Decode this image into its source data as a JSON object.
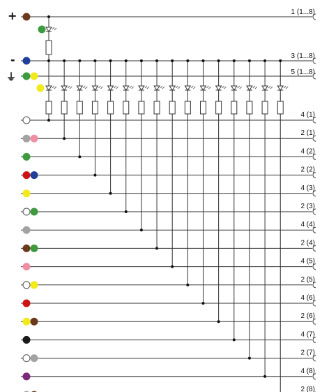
{
  "diagram": {
    "supply": {
      "plus_symbol": "+",
      "minus_symbol": "-",
      "ground_symbol": "⏚"
    },
    "bus_labels": {
      "positive": "1 (1...8)",
      "negative": "3 (1...8)",
      "ground": "5 (1...8)"
    },
    "wire_colors": {
      "brown": "#6b3a1e",
      "green": "#3e9a3e",
      "blue": "#1f3f99",
      "yellow": "#f2ea1c",
      "white": "#ffffff",
      "grey": "#a3a3a3",
      "pink": "#ee8fa3",
      "red": "#cc1414",
      "black": "#1a1a1a",
      "violet": "#7a2a78"
    },
    "bus_dots": {
      "positive": [
        "brown"
      ],
      "negative": [
        "blue"
      ],
      "ground": [
        "green",
        "yellow"
      ]
    },
    "power_led_dot": "green",
    "signal_led_dot": "yellow",
    "channels": [
      {
        "label": "4 (1)",
        "dots": [
          "white"
        ]
      },
      {
        "label": "2 (1)",
        "dots": [
          "grey",
          "pink"
        ]
      },
      {
        "label": "4 (2)",
        "dots": [
          "green"
        ]
      },
      {
        "label": "2 (2)",
        "dots": [
          "red",
          "blue"
        ]
      },
      {
        "label": "4 (3)",
        "dots": [
          "yellow"
        ]
      },
      {
        "label": "2 (3)",
        "dots": [
          "white",
          "green"
        ]
      },
      {
        "label": "4 (4)",
        "dots": [
          "grey"
        ]
      },
      {
        "label": "2 (4)",
        "dots": [
          "brown",
          "green"
        ]
      },
      {
        "label": "4 (5)",
        "dots": [
          "pink"
        ]
      },
      {
        "label": "2 (5)",
        "dots": [
          "white",
          "yellow"
        ]
      },
      {
        "label": "4 (6)",
        "dots": [
          "red"
        ]
      },
      {
        "label": "2 (6)",
        "dots": [
          "yellow",
          "brown"
        ]
      },
      {
        "label": "4 (7)",
        "dots": [
          "black"
        ]
      },
      {
        "label": "2 (7)",
        "dots": [
          "white",
          "grey"
        ]
      },
      {
        "label": "4 (8)",
        "dots": [
          "violet"
        ]
      },
      {
        "label": "2 (8)",
        "dots": [
          "grey",
          "brown"
        ]
      }
    ]
  }
}
